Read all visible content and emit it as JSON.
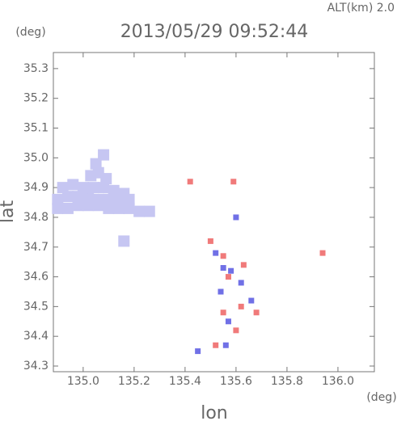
{
  "chart_data": {
    "type": "scatter",
    "title": "2013/05/29 09:52:44",
    "subtitle": "ALT(km) 2.0",
    "x_label": "lon",
    "y_label": "lat",
    "x_unit": "(deg)",
    "y_unit": "(deg)",
    "xlim": [
      134.883,
      136.143
    ],
    "ylim": [
      34.281,
      35.354
    ],
    "xticks": [
      {
        "value": 135.0,
        "label": "135.0"
      },
      135.2,
      135.4,
      135.6,
      135.8,
      {
        "value": 136.0,
        "label": "136.0"
      }
    ],
    "yticks": [
      34.3,
      34.4,
      34.5,
      34.6,
      34.7,
      34.8,
      34.9,
      {
        "value": 35.0,
        "label": "35.0"
      },
      35.1,
      35.2,
      35.3
    ],
    "groups": [
      {
        "color": "#c6c6f2",
        "x": [
          134.9,
          134.94,
          134.98,
          135.02,
          135.06,
          135.1,
          135.14,
          135.18,
          135.22,
          135.26,
          134.9,
          134.94,
          134.98,
          135.02,
          135.06,
          135.1,
          135.14,
          135.18,
          134.92,
          134.96,
          135.0,
          135.04,
          135.08,
          135.12,
          135.16,
          135.03,
          135.06,
          135.09,
          135.05,
          135.08,
          135.16
        ],
        "y": [
          34.83,
          34.83,
          34.84,
          34.84,
          34.84,
          34.83,
          34.83,
          34.83,
          34.82,
          34.82,
          34.86,
          34.87,
          34.87,
          34.87,
          34.86,
          34.86,
          34.86,
          34.86,
          34.9,
          34.91,
          34.9,
          34.9,
          34.9,
          34.89,
          34.88,
          34.94,
          34.95,
          34.93,
          34.98,
          35.01,
          34.72
        ]
      },
      {
        "color": "#7070e6",
        "x": [
          135.45,
          135.56,
          135.58,
          135.54,
          135.6,
          135.52,
          135.57,
          135.62,
          135.55,
          135.66
        ],
        "y": [
          34.35,
          34.37,
          34.62,
          34.55,
          34.8,
          34.68,
          34.45,
          34.58,
          34.63,
          34.52
        ]
      },
      {
        "color": "#f07a7a",
        "x": [
          135.42,
          135.59,
          135.55,
          135.57,
          135.55,
          135.62,
          135.68,
          135.52,
          135.94,
          135.5,
          135.6,
          135.63
        ],
        "y": [
          34.92,
          34.92,
          34.67,
          34.6,
          34.48,
          34.5,
          34.48,
          34.37,
          34.68,
          34.72,
          34.42,
          34.64
        ]
      }
    ]
  }
}
